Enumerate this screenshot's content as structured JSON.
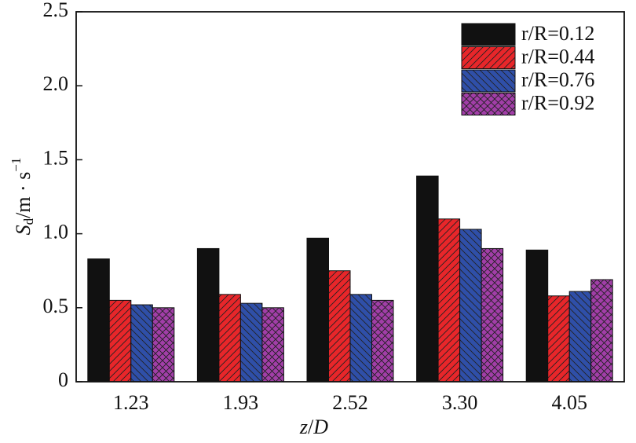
{
  "chart_data": {
    "type": "bar",
    "categories": [
      "1.23",
      "1.93",
      "2.52",
      "3.30",
      "4.05"
    ],
    "series": [
      {
        "name": "r/R=0.12",
        "color": "#111111",
        "hatch": null,
        "values": [
          0.83,
          0.9,
          0.97,
          1.39,
          0.89
        ]
      },
      {
        "name": "r/R=0.44",
        "color": "#e8262a",
        "hatch": "/",
        "values": [
          0.55,
          0.59,
          0.75,
          1.1,
          0.58
        ]
      },
      {
        "name": "r/R=0.76",
        "color": "#2f4fa8",
        "hatch": "\\",
        "values": [
          0.52,
          0.53,
          0.59,
          1.03,
          0.61
        ]
      },
      {
        "name": "r/R=0.92",
        "color": "#a23ea8",
        "hatch": "x",
        "values": [
          0.5,
          0.5,
          0.55,
          0.9,
          0.69
        ]
      }
    ],
    "xlabel": {
      "italic1": "z",
      "slash": "/",
      "italic2": "D"
    },
    "ylabel": {
      "main": "S",
      "sub": "d",
      "rest": "/m · s",
      "sup": "−1"
    },
    "ylim": [
      0,
      2.5
    ],
    "yticks": [
      0,
      0.5,
      {
        "value": 1,
        "label": "1.0"
      },
      1.5,
      {
        "value": 2,
        "label": "2.0"
      },
      2.5
    ],
    "legend": "upper right"
  }
}
